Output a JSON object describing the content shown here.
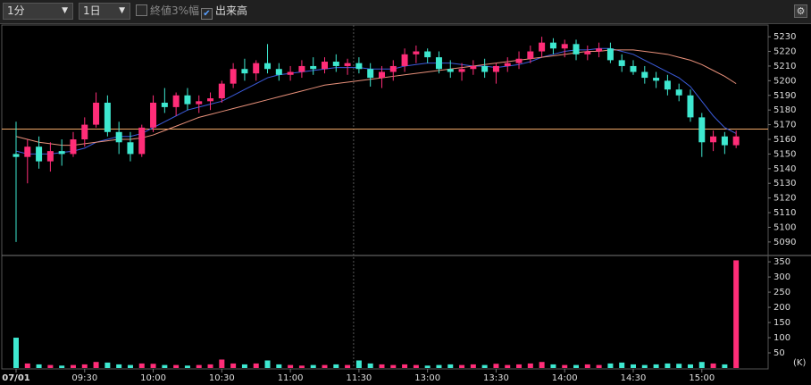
{
  "toolbar": {
    "interval": "1分",
    "range": "1日",
    "option_close_range": "終値3%幅",
    "option_volume": "出来高",
    "option_close_range_checked": false,
    "option_volume_checked": true
  },
  "chart_data": {
    "type": "candlestick",
    "open": [
      5150,
      5148,
      5155,
      5145,
      5152,
      5150,
      5160,
      5170,
      5185,
      5165,
      5158,
      5150,
      5168,
      5185,
      5182,
      5190,
      5184,
      5186,
      5188,
      5198,
      5208,
      5205,
      5212,
      5208,
      5204,
      5206,
      5210,
      5208,
      5213,
      5210,
      5212,
      5208,
      5202,
      5206,
      5210,
      5218,
      5220,
      5216,
      5208,
      5206,
      5208,
      5210,
      5206,
      5210,
      5212,
      5215,
      5220,
      5226,
      5222,
      5225,
      5218,
      5220,
      5222,
      5214,
      5210,
      5206,
      5202,
      5200,
      5194,
      5190,
      5175,
      5158,
      5162,
      5156
    ],
    "high": [
      5172,
      5160,
      5162,
      5158,
      5160,
      5165,
      5175,
      5192,
      5190,
      5172,
      5165,
      5170,
      5190,
      5195,
      5192,
      5195,
      5190,
      5192,
      5200,
      5212,
      5215,
      5214,
      5225,
      5212,
      5210,
      5214,
      5216,
      5216,
      5218,
      5215,
      5216,
      5212,
      5210,
      5214,
      5222,
      5224,
      5222,
      5220,
      5214,
      5212,
      5214,
      5215,
      5212,
      5216,
      5220,
      5224,
      5230,
      5229,
      5228,
      5228,
      5224,
      5226,
      5226,
      5218,
      5214,
      5210,
      5206,
      5204,
      5198,
      5194,
      5178,
      5166,
      5165,
      5166
    ],
    "low": [
      5090,
      5130,
      5140,
      5138,
      5142,
      5148,
      5155,
      5168,
      5162,
      5150,
      5145,
      5148,
      5165,
      5178,
      5176,
      5180,
      5178,
      5180,
      5185,
      5195,
      5200,
      5200,
      5205,
      5200,
      5200,
      5202,
      5204,
      5205,
      5206,
      5204,
      5205,
      5196,
      5195,
      5200,
      5206,
      5212,
      5212,
      5205,
      5202,
      5200,
      5204,
      5202,
      5198,
      5206,
      5208,
      5212,
      5216,
      5218,
      5216,
      5214,
      5214,
      5216,
      5212,
      5206,
      5204,
      5198,
      5195,
      5190,
      5186,
      5172,
      5148,
      5152,
      5150,
      5154
    ],
    "close": [
      5148,
      5155,
      5145,
      5152,
      5150,
      5160,
      5170,
      5185,
      5165,
      5158,
      5150,
      5168,
      5185,
      5182,
      5190,
      5184,
      5186,
      5188,
      5198,
      5208,
      5205,
      5212,
      5208,
      5204,
      5206,
      5210,
      5208,
      5213,
      5210,
      5212,
      5208,
      5202,
      5206,
      5210,
      5218,
      5220,
      5216,
      5208,
      5206,
      5208,
      5210,
      5206,
      5210,
      5212,
      5215,
      5220,
      5226,
      5222,
      5225,
      5218,
      5220,
      5222,
      5214,
      5210,
      5206,
      5202,
      5200,
      5194,
      5190,
      5175,
      5158,
      5162,
      5156,
      5162
    ],
    "moving_averages": [
      {
        "color": "#3b5bdb",
        "values": [
          5152,
          5150,
          5150,
          5150,
          5151,
          5152,
          5154,
          5158,
          5160,
          5162,
          5162,
          5164,
          5168,
          5172,
          5176,
          5180,
          5182,
          5184,
          5186,
          5190,
          5194,
          5198,
          5202,
          5204,
          5205,
          5206,
          5207,
          5208,
          5209,
          5209,
          5209,
          5208,
          5208,
          5208,
          5210,
          5211,
          5212,
          5212,
          5212,
          5211,
          5210,
          5210,
          5209,
          5210,
          5211,
          5213,
          5216,
          5218,
          5220,
          5221,
          5221,
          5222,
          5222,
          5220,
          5218,
          5214,
          5210,
          5206,
          5202,
          5196,
          5186,
          5176,
          5168,
          5164
        ]
      },
      {
        "color": "#e8907a",
        "values": [
          5162,
          5160,
          5158,
          5157,
          5156,
          5156,
          5157,
          5158,
          5159,
          5160,
          5160,
          5161,
          5163,
          5166,
          5169,
          5172,
          5175,
          5177,
          5179,
          5181,
          5183,
          5185,
          5187,
          5189,
          5191,
          5193,
          5195,
          5197,
          5198,
          5199,
          5200,
          5201,
          5202,
          5203,
          5204,
          5205,
          5206,
          5207,
          5208,
          5209,
          5210,
          5211,
          5212,
          5213,
          5214,
          5215,
          5216,
          5217,
          5218,
          5219,
          5220,
          5220,
          5221,
          5221,
          5221,
          5220,
          5219,
          5218,
          5216,
          5214,
          5211,
          5207,
          5203,
          5198
        ]
      }
    ],
    "reference_line": 5167,
    "up_color": "#ff2d78",
    "down_color": "#3ee8d0",
    "ylim": [
      5082,
      5238
    ],
    "yticks": [
      5090,
      5100,
      5110,
      5120,
      5130,
      5140,
      5150,
      5160,
      5170,
      5180,
      5190,
      5200,
      5210,
      5220,
      5230
    ],
    "xlim": [
      -1.25,
      65.8
    ],
    "xticks": [
      {
        "value": 0,
        "label": "07/01"
      },
      {
        "value": 6,
        "label": "09:30"
      },
      {
        "value": 12,
        "label": "10:00"
      },
      {
        "value": 18,
        "label": "10:30"
      },
      {
        "value": 24,
        "label": "11:00"
      },
      {
        "value": 30,
        "label": "11:30"
      },
      {
        "value": 36,
        "label": "13:00"
      },
      {
        "value": 42,
        "label": "13:30"
      },
      {
        "value": 48,
        "label": "14:00"
      },
      {
        "value": 54,
        "label": "14:30"
      },
      {
        "value": 60,
        "label": "15:00"
      }
    ],
    "volume": {
      "unit": "(K)",
      "values": [
        100,
        15,
        12,
        10,
        8,
        10,
        12,
        20,
        18,
        12,
        10,
        15,
        14,
        10,
        10,
        8,
        10,
        12,
        28,
        15,
        12,
        15,
        25,
        12,
        10,
        8,
        10,
        10,
        12,
        10,
        25,
        15,
        12,
        10,
        12,
        10,
        8,
        10,
        12,
        10,
        12,
        10,
        14,
        10,
        12,
        15,
        20,
        12,
        10,
        10,
        12,
        10,
        15,
        18,
        12,
        10,
        12,
        15,
        14,
        12,
        20,
        15,
        12,
        355
      ],
      "ylim": [
        0,
        368
      ],
      "yticks": [
        50,
        100,
        150,
        200,
        250,
        300,
        350
      ]
    }
  }
}
